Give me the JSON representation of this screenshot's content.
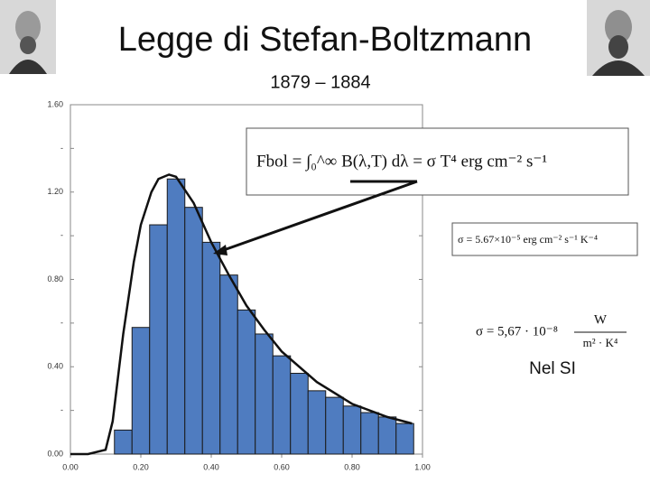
{
  "header": {
    "title": "Legge di Stefan-Boltzmann",
    "subtitle": "1879 – 1884"
  },
  "formulas": {
    "main": "Fbol = ∫₀^∞ B(λ,T) dλ = σ T⁴ erg cm⁻² s⁻¹",
    "cgs": "σ = 5.67×10⁻⁵ erg cm⁻² s⁻¹ K⁻⁴",
    "si_left": "σ = 5,67 · 10⁻⁸",
    "si_num": "W",
    "si_den": "m² · K⁴",
    "si_caption": "Nel SI"
  },
  "chart_data": {
    "type": "histogram",
    "bins": [
      0.125,
      0.175,
      0.225,
      0.275,
      0.325,
      0.375,
      0.425,
      0.475,
      0.525,
      0.575,
      0.625,
      0.675,
      0.725,
      0.775,
      0.825,
      0.875,
      0.925,
      0.975
    ],
    "values": [
      0.11,
      0.58,
      1.05,
      1.26,
      1.13,
      0.97,
      0.82,
      0.66,
      0.55,
      0.45,
      0.37,
      0.29,
      0.26,
      0.22,
      0.19,
      0.17,
      0.14
    ],
    "color": "#4f7cc0",
    "line": {
      "color": "#111111",
      "x": [
        0.0,
        0.05,
        0.1,
        0.12,
        0.15,
        0.18,
        0.2,
        0.23,
        0.25,
        0.28,
        0.3,
        0.35,
        0.4,
        0.45,
        0.5,
        0.55,
        0.6,
        0.7,
        0.8,
        0.9,
        0.97
      ],
      "values": [
        0.0,
        0.0,
        0.02,
        0.15,
        0.55,
        0.88,
        1.05,
        1.2,
        1.26,
        1.28,
        1.27,
        1.15,
        0.97,
        0.82,
        0.68,
        0.57,
        0.47,
        0.33,
        0.23,
        0.17,
        0.14
      ]
    },
    "xlim": [
      0,
      1
    ],
    "ylim": [
      0,
      1.6
    ],
    "xticks": [
      {
        "value": 0,
        "label": "0.00"
      },
      {
        "value": 0.2,
        "label": "0.20"
      },
      {
        "value": 0.4,
        "label": "0.40"
      },
      {
        "value": 0.6,
        "label": "0.60"
      },
      {
        "value": 0.8,
        "label": "0.80"
      },
      {
        "value": 1,
        "label": "1.00"
      }
    ],
    "yticks": [
      {
        "value": 0,
        "label": "0.00"
      },
      {
        "value": 0.2,
        "label": "-"
      },
      {
        "value": 0.4,
        "label": "0.40"
      },
      {
        "value": 0.6,
        "label": "-"
      },
      {
        "value": 0.8,
        "label": "0.80"
      },
      {
        "value": 1.0,
        "label": "-"
      },
      {
        "value": 1.2,
        "label": "1.20"
      },
      {
        "value": 1.4,
        "label": "-"
      },
      {
        "value": 1.6,
        "label": "1.60"
      }
    ]
  }
}
